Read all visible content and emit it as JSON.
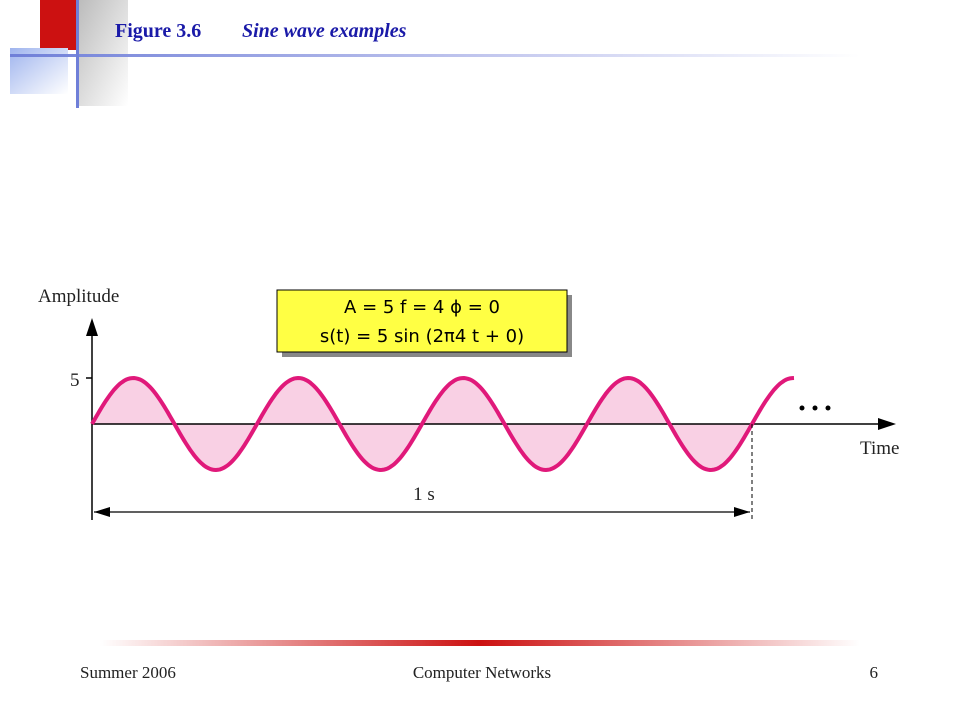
{
  "header": {
    "figure_label": "Figure 3.6",
    "caption": "Sine wave examples"
  },
  "diagram": {
    "y_axis_label": "Amplitude",
    "box_line1": "A = 5    f = 4    ϕ = 0",
    "box_line2": "s(t) = 5 sin (2π4 t + 0)",
    "amplitude_tick": "5",
    "x_axis_label": "Time",
    "duration_label": "1 s"
  },
  "footer": {
    "left": "Summer 2006",
    "center": "Computer Networks",
    "right": "6"
  }
}
